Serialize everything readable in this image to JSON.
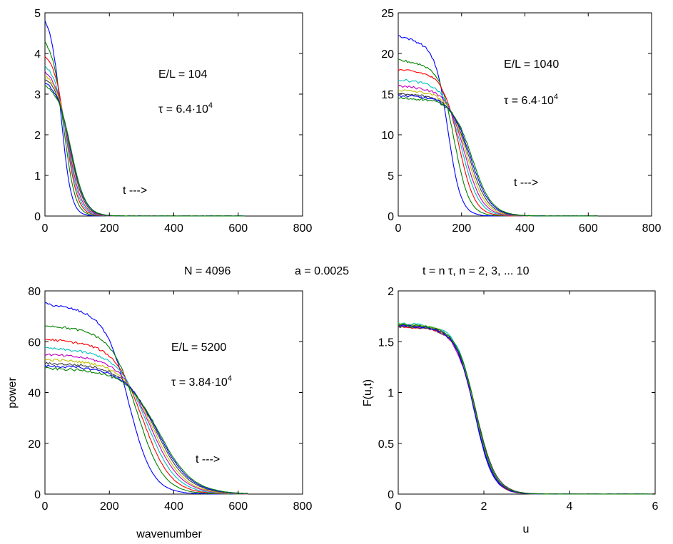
{
  "chart_data": [
    {
      "type": "line",
      "panel": "top-left",
      "xlim": [
        0,
        800
      ],
      "ylim": [
        0,
        5
      ],
      "xticks": [
        "0",
        "200",
        "400",
        "600",
        "800"
      ],
      "yticks": [
        "0",
        "1",
        "2",
        "3",
        "4",
        "5"
      ],
      "xlabel": "",
      "ylabel": "",
      "kmax": 620,
      "annotations": {
        "el_label": "E/L = 104",
        "tau_base": "τ = 6.4·10",
        "tau_exp": "4",
        "arrow": "t --->"
      },
      "series": [
        {
          "name": "n=2",
          "color": "#0000ff",
          "plateau": 4.95,
          "start": 4.95,
          "end": 4.6,
          "k0": 52,
          "w": 15
        },
        {
          "name": "n=3",
          "color": "#008000",
          "plateau": 4.4,
          "start": 4.4,
          "end": 4.15,
          "k0": 60,
          "w": 17
        },
        {
          "name": "n=4",
          "color": "#ff0000",
          "plateau": 4.05,
          "start": 4.05,
          "end": 3.9,
          "k0": 66,
          "w": 18
        },
        {
          "name": "n=5",
          "color": "#00bfbf",
          "plateau": 3.8,
          "start": 3.8,
          "end": 3.6,
          "k0": 70,
          "w": 19
        },
        {
          "name": "n=6",
          "color": "#bf00bf",
          "plateau": 3.65,
          "start": 3.65,
          "end": 3.5,
          "k0": 73,
          "w": 20
        },
        {
          "name": "n=7",
          "color": "#bfbf00",
          "plateau": 3.55,
          "start": 3.55,
          "end": 3.45,
          "k0": 76,
          "w": 21
        },
        {
          "name": "n=8",
          "color": "#404040",
          "plateau": 3.45,
          "start": 3.45,
          "end": 3.35,
          "k0": 78,
          "w": 21
        },
        {
          "name": "n=9",
          "color": "#0000ff",
          "plateau": 3.35,
          "start": 3.35,
          "end": 3.3,
          "k0": 80,
          "w": 22
        },
        {
          "name": "n=10",
          "color": "#008000",
          "plateau": 3.3,
          "start": 3.3,
          "end": 3.2,
          "k0": 82,
          "w": 22
        }
      ]
    },
    {
      "type": "line",
      "panel": "top-right",
      "xlim": [
        0,
        800
      ],
      "ylim": [
        0,
        25
      ],
      "xticks": [
        "0",
        "200",
        "400",
        "600",
        "800"
      ],
      "yticks": [
        "0",
        "5",
        "10",
        "15",
        "20",
        "25"
      ],
      "xlabel": "",
      "ylabel": "",
      "kmax": 630,
      "annotations": {
        "el_label": "E/L = 1040",
        "tau_base": "τ = 6.4·10",
        "tau_exp": "4",
        "arrow": "t --->"
      },
      "series": [
        {
          "name": "n=2",
          "color": "#0000ff",
          "plateau": 22.2,
          "start": 22.2,
          "end": 20.5,
          "k0": 158,
          "w": 20
        },
        {
          "name": "n=3",
          "color": "#008000",
          "plateau": 19.2,
          "start": 19.2,
          "end": 18.2,
          "k0": 178,
          "w": 23
        },
        {
          "name": "n=4",
          "color": "#ff0000",
          "plateau": 18.0,
          "start": 18.0,
          "end": 17.3,
          "k0": 192,
          "w": 25
        },
        {
          "name": "n=5",
          "color": "#00bfbf",
          "plateau": 16.8,
          "start": 16.8,
          "end": 16.0,
          "k0": 202,
          "w": 27
        },
        {
          "name": "n=6",
          "color": "#bf00bf",
          "plateau": 16.0,
          "start": 16.0,
          "end": 15.4,
          "k0": 210,
          "w": 28
        },
        {
          "name": "n=7",
          "color": "#bfbf00",
          "plateau": 15.5,
          "start": 15.5,
          "end": 15.0,
          "k0": 217,
          "w": 29
        },
        {
          "name": "n=8",
          "color": "#404040",
          "plateau": 15.0,
          "start": 15.0,
          "end": 14.7,
          "k0": 223,
          "w": 30
        },
        {
          "name": "n=9",
          "color": "#0000ff",
          "plateau": 14.8,
          "start": 14.8,
          "end": 14.5,
          "k0": 228,
          "w": 31
        },
        {
          "name": "n=10",
          "color": "#008000",
          "plateau": 14.5,
          "start": 14.5,
          "end": 14.3,
          "k0": 233,
          "w": 31
        }
      ]
    },
    {
      "type": "line",
      "panel": "bottom-left",
      "xlim": [
        0,
        800
      ],
      "ylim": [
        0,
        80
      ],
      "xticks": [
        "0",
        "200",
        "400",
        "600",
        "800"
      ],
      "yticks": [
        "0",
        "20",
        "40",
        "60",
        "80"
      ],
      "xlabel": "wavenumber",
      "ylabel": "power",
      "kmax": 630,
      "annotations": {
        "el_label": "E/L = 5200",
        "tau_base": "τ = 3.84·10",
        "tau_exp": "4",
        "arrow": "t --->"
      },
      "series": [
        {
          "name": "n=2",
          "color": "#0000ff",
          "plateau": 75,
          "start": 75,
          "end": 70,
          "k0": 262,
          "w": 36
        },
        {
          "name": "n=3",
          "color": "#008000",
          "plateau": 66.5,
          "start": 66.5,
          "end": 63,
          "k0": 288,
          "w": 40
        },
        {
          "name": "n=4",
          "color": "#ff0000",
          "plateau": 61,
          "start": 61,
          "end": 58,
          "k0": 305,
          "w": 43
        },
        {
          "name": "n=5",
          "color": "#00bfbf",
          "plateau": 57.5,
          "start": 57.5,
          "end": 55,
          "k0": 318,
          "w": 45
        },
        {
          "name": "n=6",
          "color": "#bf00bf",
          "plateau": 55,
          "start": 55,
          "end": 53,
          "k0": 328,
          "w": 47
        },
        {
          "name": "n=7",
          "color": "#bfbf00",
          "plateau": 53,
          "start": 53,
          "end": 51.5,
          "k0": 336,
          "w": 48
        },
        {
          "name": "n=8",
          "color": "#404040",
          "plateau": 51.5,
          "start": 51.5,
          "end": 50.5,
          "k0": 343,
          "w": 50
        },
        {
          "name": "n=9",
          "color": "#0000ff",
          "plateau": 50.5,
          "start": 50.5,
          "end": 49.5,
          "k0": 349,
          "w": 51
        },
        {
          "name": "n=10",
          "color": "#008000",
          "plateau": 49.5,
          "start": 49.5,
          "end": 48.5,
          "k0": 354,
          "w": 52
        }
      ]
    },
    {
      "type": "line",
      "panel": "bottom-right",
      "xlim": [
        0,
        6
      ],
      "ylim": [
        0,
        2
      ],
      "xticks": [
        "0",
        "2",
        "4",
        "6"
      ],
      "yticks": [
        "0",
        "0.5",
        "1",
        "1.5",
        "2"
      ],
      "xlabel": "u",
      "ylabel": "F(u,t)",
      "kmax": 6,
      "annotations": {},
      "series": [
        {
          "name": "n=2",
          "color": "#0000ff",
          "plateau": 1.66,
          "start": 1.66,
          "end": 1.62,
          "k0": 1.78,
          "w": 0.21
        },
        {
          "name": "n=3",
          "color": "#008000",
          "plateau": 1.67,
          "start": 1.67,
          "end": 1.63,
          "k0": 1.79,
          "w": 0.22
        },
        {
          "name": "n=4",
          "color": "#ff0000",
          "plateau": 1.65,
          "start": 1.65,
          "end": 1.61,
          "k0": 1.8,
          "w": 0.21
        },
        {
          "name": "n=5",
          "color": "#00bfbf",
          "plateau": 1.68,
          "start": 1.68,
          "end": 1.64,
          "k0": 1.81,
          "w": 0.22
        },
        {
          "name": "n=6",
          "color": "#bf00bf",
          "plateau": 1.66,
          "start": 1.66,
          "end": 1.62,
          "k0": 1.79,
          "w": 0.23
        },
        {
          "name": "n=7",
          "color": "#bfbf00",
          "plateau": 1.67,
          "start": 1.67,
          "end": 1.63,
          "k0": 1.8,
          "w": 0.22
        },
        {
          "name": "n=8",
          "color": "#404040",
          "plateau": 1.65,
          "start": 1.65,
          "end": 1.62,
          "k0": 1.82,
          "w": 0.23
        },
        {
          "name": "n=9",
          "color": "#0000ff",
          "plateau": 1.66,
          "start": 1.66,
          "end": 1.63,
          "k0": 1.78,
          "w": 0.22
        },
        {
          "name": "n=10",
          "color": "#008000",
          "plateau": 1.67,
          "start": 1.67,
          "end": 1.63,
          "k0": 1.81,
          "w": 0.22
        }
      ]
    }
  ],
  "shared_text": {
    "n_label": "N = 4096",
    "a_label": "a  = 0.0025",
    "t_label": "t = n τ,  n = 2, 3, ... 10"
  }
}
